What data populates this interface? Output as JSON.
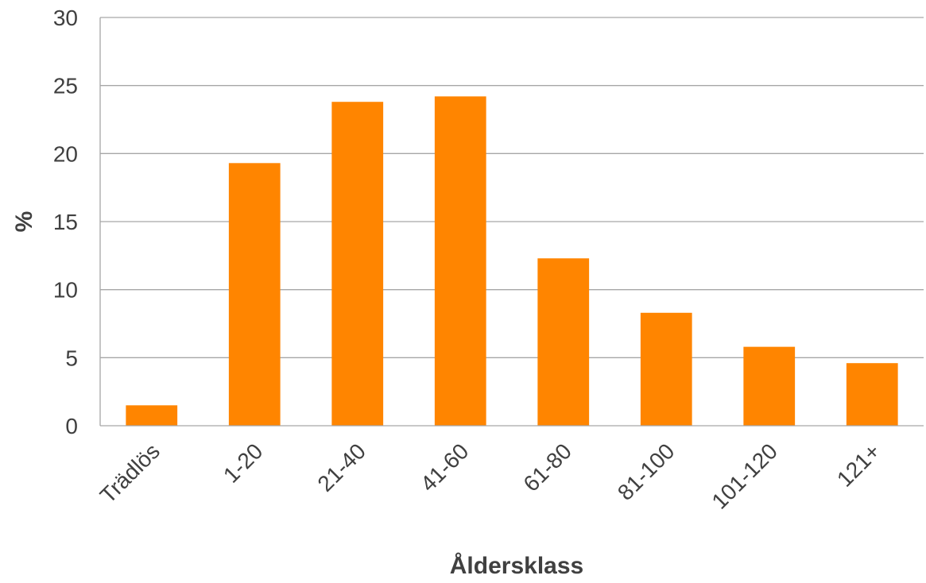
{
  "chart_data": {
    "type": "bar",
    "title": "",
    "xlabel": "Åldersklass",
    "ylabel": "%",
    "ylim": [
      0,
      30
    ],
    "yticks": [
      0,
      5,
      10,
      15,
      20,
      25,
      30
    ],
    "grid": true,
    "legend": "none",
    "categories": [
      "Trädlös",
      "1-20",
      "21-40",
      "41-60",
      "61-80",
      "81-100",
      "101-120",
      "121+"
    ],
    "values": [
      1.5,
      19.3,
      23.8,
      24.2,
      12.3,
      8.3,
      5.8,
      4.6
    ],
    "bar_color": "#ff8500",
    "grid_color": "#a6a6a6",
    "text_color": "#404040"
  }
}
